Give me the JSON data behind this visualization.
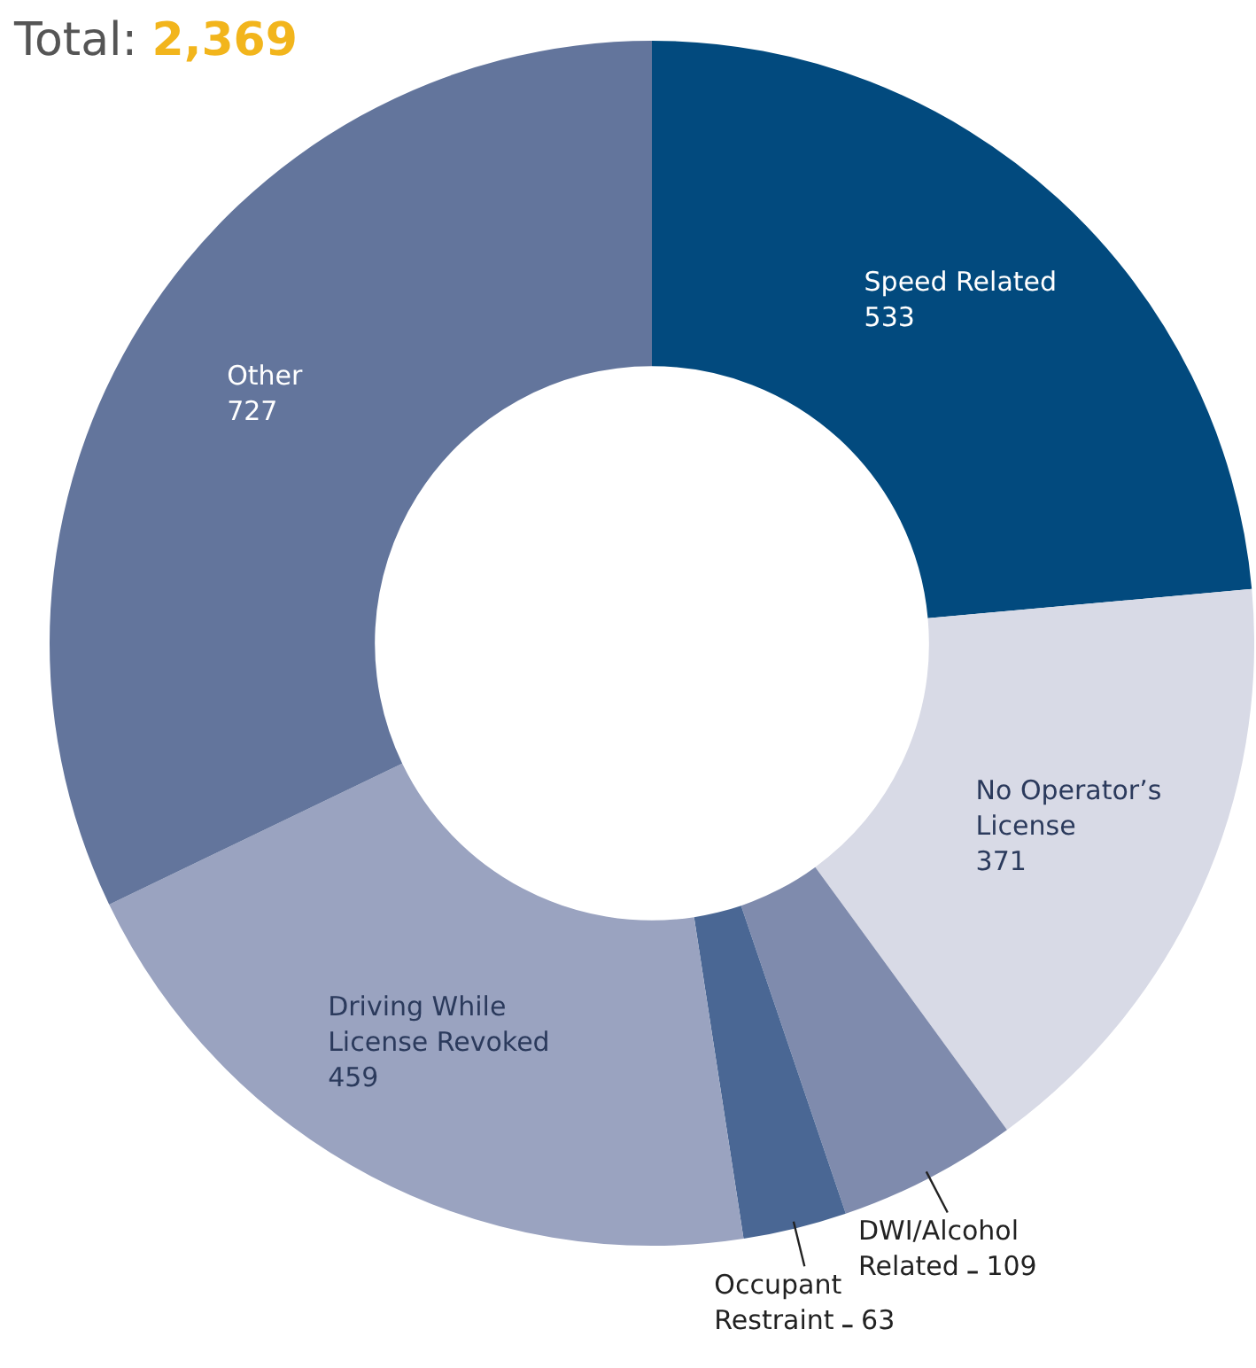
{
  "chart_data": {
    "type": "donut",
    "title": "Total: 2,369",
    "categories": [
      "Speed Related",
      "No Operator’s License",
      "DWI/Alcohol Related",
      "Occupant Restraint",
      "Driving While License Revoked",
      "Other"
    ],
    "values": [
      533,
      371,
      109,
      63,
      459,
      727
    ],
    "colors": [
      "#024a7e",
      "#d8dae6",
      "#7f8bad",
      "#4a6794",
      "#9aa3c0",
      "#63759c"
    ],
    "data_labels": true,
    "legend": false
  }
}
